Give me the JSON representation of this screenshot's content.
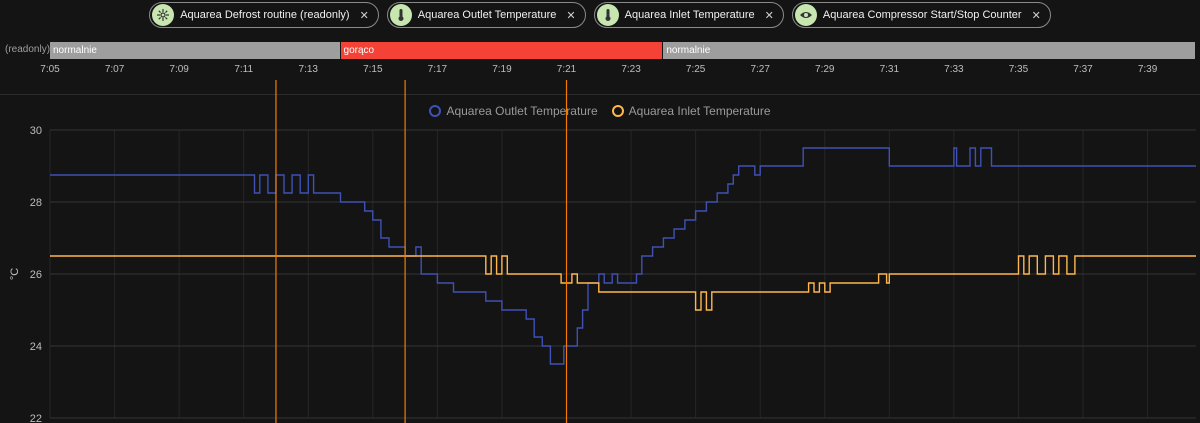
{
  "chips": [
    {
      "label": "Aquarea Defrost routine (readonly)",
      "icon": "snowflake-sun-icon"
    },
    {
      "label": "Aquarea Outlet Temperature",
      "icon": "thermometer-icon"
    },
    {
      "label": "Aquarea Inlet Temperature",
      "icon": "thermometer-icon"
    },
    {
      "label": "Aquarea Compressor Start/Stop Counter",
      "icon": "eye-icon"
    }
  ],
  "timeline": {
    "label": "(readonly)",
    "segments": [
      {
        "label": "normalnie",
        "start": "7:05",
        "end": "7:14",
        "color": "#9e9e9e"
      },
      {
        "label": "gorąco",
        "start": "7:14",
        "end": "7:24",
        "color": "#f44336"
      },
      {
        "label": "normalnie",
        "start": "7:24",
        "end": "7:40:30",
        "color": "#9e9e9e"
      }
    ]
  },
  "chart_data": {
    "type": "line",
    "title": "",
    "xlabel": "",
    "ylabel": "°C",
    "x_range": [
      "7:05",
      "7:40:30"
    ],
    "x_ticks": [
      "7:05",
      "7:07",
      "7:09",
      "7:11",
      "7:13",
      "7:15",
      "7:17",
      "7:19",
      "7:21",
      "7:23",
      "7:25",
      "7:27",
      "7:29",
      "7:31",
      "7:33",
      "7:35",
      "7:37",
      "7:39"
    ],
    "ylim": [
      22,
      30
    ],
    "y_ticks": [
      22,
      24,
      26,
      28,
      30
    ],
    "grid": true,
    "legend_position": "top-center",
    "markers": [
      "7:12",
      "7:16",
      "7:21"
    ],
    "marker_color": "#f57c00",
    "series": [
      {
        "name": "Aquarea Outlet Temperature",
        "color": "#3f51b5",
        "step": true,
        "points": [
          [
            "7:05",
            28.75
          ],
          [
            "7:11:20",
            28.75
          ],
          [
            "7:11:20",
            28.25
          ],
          [
            "7:11:30",
            28.25
          ],
          [
            "7:11:30",
            28.75
          ],
          [
            "7:11:45",
            28.75
          ],
          [
            "7:11:45",
            28.25
          ],
          [
            "7:12:00",
            28.25
          ],
          [
            "7:12:00",
            28.75
          ],
          [
            "7:12:15",
            28.75
          ],
          [
            "7:12:15",
            28.25
          ],
          [
            "7:12:30",
            28.25
          ],
          [
            "7:12:30",
            28.75
          ],
          [
            "7:12:45",
            28.75
          ],
          [
            "7:12:45",
            28.25
          ],
          [
            "7:13:00",
            28.25
          ],
          [
            "7:13:00",
            28.75
          ],
          [
            "7:13:10",
            28.75
          ],
          [
            "7:13:10",
            28.25
          ],
          [
            "7:14:00",
            28.25
          ],
          [
            "7:14:00",
            28.0
          ],
          [
            "7:14:45",
            28.0
          ],
          [
            "7:14:45",
            27.75
          ],
          [
            "7:15:00",
            27.75
          ],
          [
            "7:15:00",
            27.5
          ],
          [
            "7:15:15",
            27.5
          ],
          [
            "7:15:15",
            27.0
          ],
          [
            "7:15:30",
            27.0
          ],
          [
            "7:15:30",
            26.75
          ],
          [
            "7:16:00",
            26.75
          ],
          [
            "7:16:00",
            26.5
          ],
          [
            "7:16:20",
            26.5
          ],
          [
            "7:16:20",
            26.75
          ],
          [
            "7:16:30",
            26.75
          ],
          [
            "7:16:30",
            26.0
          ],
          [
            "7:17:00",
            26.0
          ],
          [
            "7:17:00",
            25.75
          ],
          [
            "7:17:30",
            25.75
          ],
          [
            "7:17:30",
            25.5
          ],
          [
            "7:18:30",
            25.5
          ],
          [
            "7:18:30",
            25.25
          ],
          [
            "7:19:00",
            25.25
          ],
          [
            "7:19:00",
            25.0
          ],
          [
            "7:19:45",
            25.0
          ],
          [
            "7:19:45",
            24.75
          ],
          [
            "7:20:00",
            24.75
          ],
          [
            "7:20:00",
            24.25
          ],
          [
            "7:20:15",
            24.25
          ],
          [
            "7:20:15",
            24.0
          ],
          [
            "7:20:30",
            24.0
          ],
          [
            "7:20:30",
            23.5
          ],
          [
            "7:20:55",
            23.5
          ],
          [
            "7:20:55",
            24.0
          ],
          [
            "7:21:20",
            24.0
          ],
          [
            "7:21:20",
            24.5
          ],
          [
            "7:21:30",
            24.5
          ],
          [
            "7:21:30",
            25.0
          ],
          [
            "7:21:40",
            25.0
          ],
          [
            "7:21:40",
            25.75
          ],
          [
            "7:22:00",
            25.75
          ],
          [
            "7:22:00",
            26.0
          ],
          [
            "7:22:10",
            26.0
          ],
          [
            "7:22:10",
            25.75
          ],
          [
            "7:22:25",
            25.75
          ],
          [
            "7:22:25",
            26.0
          ],
          [
            "7:22:35",
            26.0
          ],
          [
            "7:22:35",
            25.75
          ],
          [
            "7:23:10",
            25.75
          ],
          [
            "7:23:10",
            26.0
          ],
          [
            "7:23:20",
            26.0
          ],
          [
            "7:23:20",
            26.5
          ],
          [
            "7:23:40",
            26.5
          ],
          [
            "7:23:40",
            26.75
          ],
          [
            "7:24:00",
            26.75
          ],
          [
            "7:24:00",
            27.0
          ],
          [
            "7:24:20",
            27.0
          ],
          [
            "7:24:20",
            27.25
          ],
          [
            "7:24:40",
            27.25
          ],
          [
            "7:24:40",
            27.5
          ],
          [
            "7:25:00",
            27.5
          ],
          [
            "7:25:00",
            27.75
          ],
          [
            "7:25:20",
            27.75
          ],
          [
            "7:25:20",
            28.0
          ],
          [
            "7:25:40",
            28.0
          ],
          [
            "7:25:40",
            28.25
          ],
          [
            "7:26:00",
            28.25
          ],
          [
            "7:26:00",
            28.5
          ],
          [
            "7:26:10",
            28.5
          ],
          [
            "7:26:10",
            28.75
          ],
          [
            "7:26:20",
            28.75
          ],
          [
            "7:26:20",
            29.0
          ],
          [
            "7:26:50",
            29.0
          ],
          [
            "7:26:50",
            28.75
          ],
          [
            "7:27:00",
            28.75
          ],
          [
            "7:27:00",
            29.0
          ],
          [
            "7:28:20",
            29.0
          ],
          [
            "7:28:20",
            29.5
          ],
          [
            "7:31:00",
            29.5
          ],
          [
            "7:31:00",
            29.0
          ],
          [
            "7:33:00",
            29.0
          ],
          [
            "7:33:00",
            29.5
          ],
          [
            "7:33:05",
            29.5
          ],
          [
            "7:33:05",
            29.0
          ],
          [
            "7:33:30",
            29.0
          ],
          [
            "7:33:30",
            29.5
          ],
          [
            "7:33:40",
            29.5
          ],
          [
            "7:33:40",
            29.0
          ],
          [
            "7:33:50",
            29.0
          ],
          [
            "7:33:50",
            29.5
          ],
          [
            "7:34:10",
            29.5
          ],
          [
            "7:34:10",
            29.0
          ],
          [
            "7:40:30",
            29.0
          ]
        ]
      },
      {
        "name": "Aquarea Inlet Temperature",
        "color": "#ffb74d",
        "step": true,
        "points": [
          [
            "7:05",
            26.5
          ],
          [
            "7:18:30",
            26.5
          ],
          [
            "7:18:30",
            26.0
          ],
          [
            "7:18:40",
            26.0
          ],
          [
            "7:18:40",
            26.5
          ],
          [
            "7:18:50",
            26.5
          ],
          [
            "7:18:50",
            26.0
          ],
          [
            "7:19:00",
            26.0
          ],
          [
            "7:19:00",
            26.5
          ],
          [
            "7:19:10",
            26.5
          ],
          [
            "7:19:10",
            26.0
          ],
          [
            "7:20:50",
            26.0
          ],
          [
            "7:20:50",
            25.75
          ],
          [
            "7:21:10",
            25.75
          ],
          [
            "7:21:10",
            26.0
          ],
          [
            "7:21:20",
            26.0
          ],
          [
            "7:21:20",
            25.75
          ],
          [
            "7:22:00",
            25.75
          ],
          [
            "7:22:00",
            25.5
          ],
          [
            "7:25:00",
            25.5
          ],
          [
            "7:25:00",
            25.0
          ],
          [
            "7:25:10",
            25.0
          ],
          [
            "7:25:10",
            25.5
          ],
          [
            "7:25:20",
            25.5
          ],
          [
            "7:25:20",
            25.0
          ],
          [
            "7:25:30",
            25.0
          ],
          [
            "7:25:30",
            25.5
          ],
          [
            "7:28:30",
            25.5
          ],
          [
            "7:28:30",
            25.75
          ],
          [
            "7:28:40",
            25.75
          ],
          [
            "7:28:40",
            25.5
          ],
          [
            "7:28:50",
            25.5
          ],
          [
            "7:28:50",
            25.75
          ],
          [
            "7:29:00",
            25.75
          ],
          [
            "7:29:00",
            25.5
          ],
          [
            "7:29:10",
            25.5
          ],
          [
            "7:29:10",
            25.75
          ],
          [
            "7:30:40",
            25.75
          ],
          [
            "7:30:40",
            26.0
          ],
          [
            "7:30:55",
            26.0
          ],
          [
            "7:30:55",
            25.75
          ],
          [
            "7:31:00",
            25.75
          ],
          [
            "7:31:00",
            26.0
          ],
          [
            "7:35:00",
            26.0
          ],
          [
            "7:35:00",
            26.5
          ],
          [
            "7:35:10",
            26.5
          ],
          [
            "7:35:10",
            26.0
          ],
          [
            "7:35:20",
            26.0
          ],
          [
            "7:35:20",
            26.5
          ],
          [
            "7:35:35",
            26.5
          ],
          [
            "7:35:35",
            26.0
          ],
          [
            "7:35:50",
            26.0
          ],
          [
            "7:35:50",
            26.5
          ],
          [
            "7:36:05",
            26.5
          ],
          [
            "7:36:05",
            26.0
          ],
          [
            "7:36:15",
            26.0
          ],
          [
            "7:36:15",
            26.5
          ],
          [
            "7:36:30",
            26.5
          ],
          [
            "7:36:30",
            26.0
          ],
          [
            "7:36:45",
            26.0
          ],
          [
            "7:36:45",
            26.5
          ],
          [
            "7:40:30",
            26.5
          ]
        ]
      }
    ]
  }
}
